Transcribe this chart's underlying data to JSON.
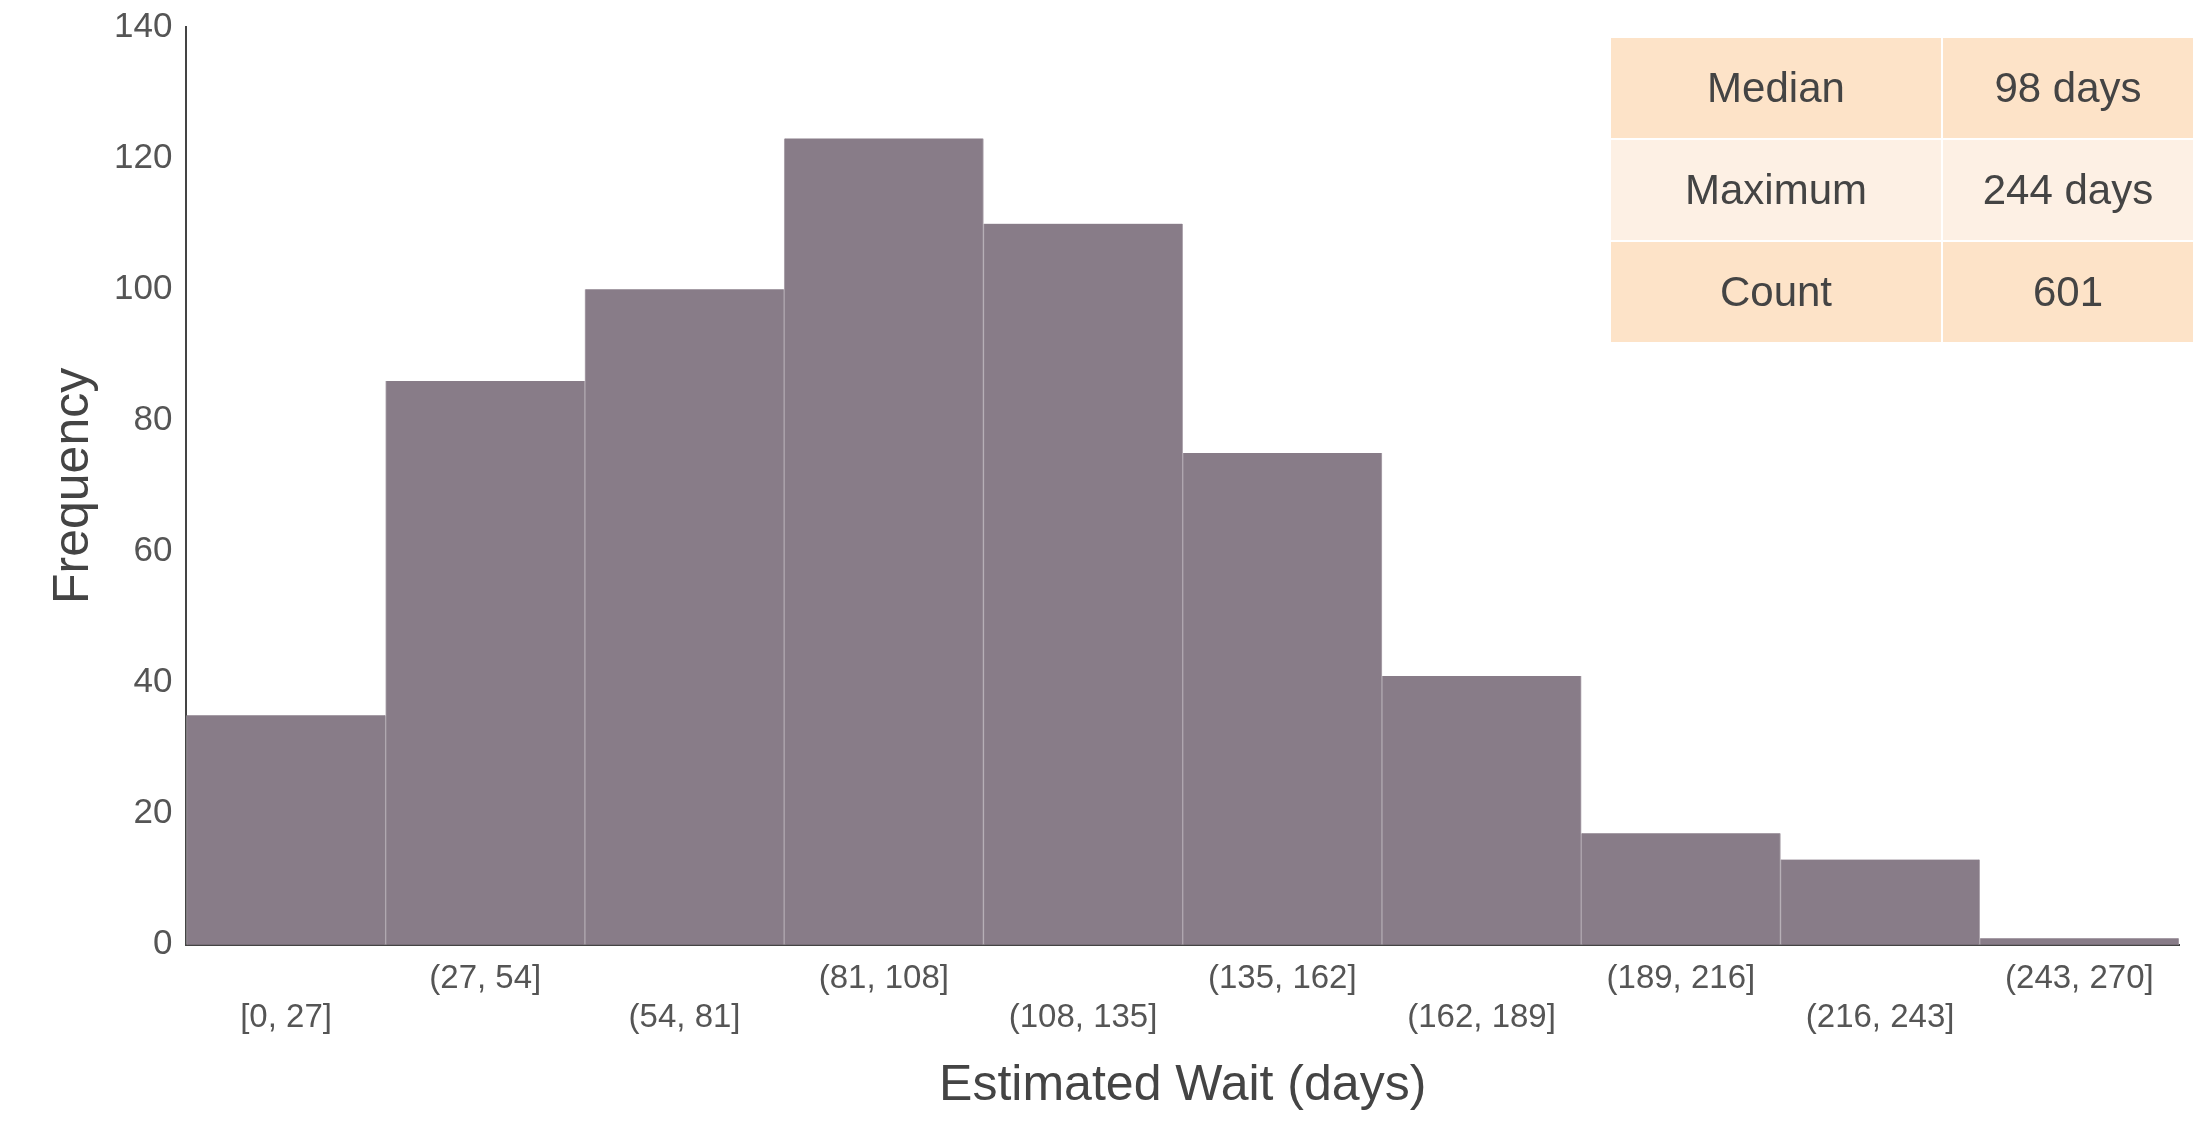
{
  "chart_data": {
    "type": "bar",
    "xlabel": "Estimated Wait (days)",
    "ylabel": "Frequency",
    "categories": [
      "[0, 27]",
      "(27, 54]",
      "(54, 81]",
      "(81, 108]",
      "(108, 135]",
      "(135, 162]",
      "(162, 189]",
      "(189, 216]",
      "(216, 243]",
      "(243, 270]"
    ],
    "values": [
      35,
      86,
      100,
      123,
      110,
      75,
      41,
      17,
      13,
      1
    ],
    "color": "#887c88",
    "ylim": [
      0,
      140
    ],
    "yticks": [
      0,
      20,
      40,
      60,
      80,
      100,
      120,
      140
    ],
    "grid": false,
    "legend": false,
    "annotations": [
      "Median",
      "98 days",
      "Maximum",
      "244 days",
      "Count",
      "601"
    ]
  }
}
